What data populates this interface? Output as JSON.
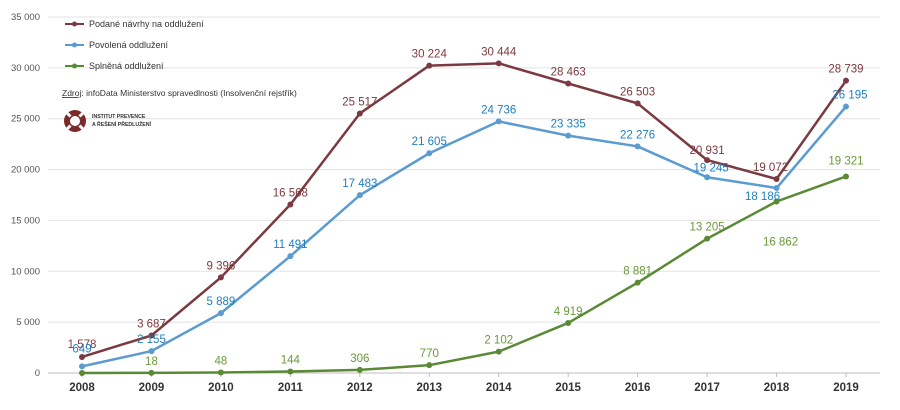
{
  "chart_data": {
    "type": "line",
    "categories": [
      "2008",
      "2009",
      "2010",
      "2011",
      "2012",
      "2013",
      "2014",
      "2015",
      "2016",
      "2017",
      "2018",
      "2019"
    ],
    "yticks": [
      "0",
      "5 000",
      "10 000",
      "15 000",
      "20 000",
      "25 000",
      "30 000",
      "35 000"
    ],
    "ylim": [
      0,
      35000
    ],
    "legend_placement": "top-left",
    "series": [
      {
        "name": "Podané návrhy na oddlužení",
        "color": "#7b3a41",
        "values": [
          1578,
          3687,
          9396,
          16568,
          25517,
          30224,
          30444,
          28463,
          26503,
          20931,
          19072,
          28739
        ],
        "labels": [
          "1 578",
          "3 687",
          "9 396",
          "16 568",
          "25 517",
          "30 224",
          "30 444",
          "28 463",
          "26 503",
          "20 931",
          "19 072",
          "28 739"
        ]
      },
      {
        "name": "Povolená oddlužení",
        "color": "#5b9bd0",
        "label_color": "#1f7fbf",
        "values": [
          649,
          2155,
          5889,
          11491,
          17483,
          21605,
          24736,
          23335,
          22276,
          19245,
          18186,
          26195
        ],
        "labels": [
          "649",
          "2 155",
          "5 889",
          "11 491",
          "17 483",
          "21 605",
          "24 736",
          "23 335",
          "22 276",
          "19 245",
          "18 186",
          "26 195"
        ]
      },
      {
        "name": "Splněná oddlužení",
        "color": "#5a8a35",
        "label_color": "#6a9a3a",
        "values": [
          0,
          18,
          48,
          144,
          306,
          770,
          2102,
          4919,
          8881,
          13205,
          16862,
          19321
        ],
        "labels": [
          "",
          "18",
          "48",
          "144",
          "306",
          "770",
          "2 102",
          "4 919",
          "8 881",
          "13 205",
          "16 862",
          "19 321"
        ]
      }
    ]
  },
  "source": {
    "prefix": "Zdroj",
    "text": ": infoData Ministerstvo spravedlnosti (Insolvenční rejstřík)"
  },
  "logo": {
    "line1": "INSTITUT PREVENCE",
    "line2": "A ŘEŠENÍ PŘEDLUŽENÍ",
    "colors": {
      "red": "#7b2a2a",
      "white": "#ffffff"
    }
  }
}
